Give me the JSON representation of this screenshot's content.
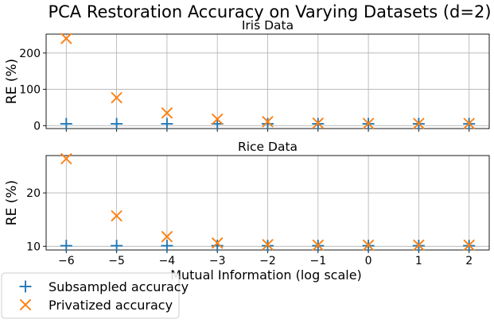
{
  "suptitle": "PCA Restoration Accuracy on Varying Datasets (d=2)",
  "legend": {
    "location": "lower-left",
    "entries": [
      {
        "label": "Subsampled accuracy",
        "marker": "plus",
        "color": "#1f77b4"
      },
      {
        "label": "Privatized accuracy",
        "marker": "x",
        "color": "#ff7f0e"
      }
    ]
  },
  "chart_data": [
    {
      "type": "scatter",
      "title": "Iris Data",
      "xlabel": "",
      "ylabel": "RE (%)",
      "x": [
        -6,
        -5,
        -4,
        -3,
        -2,
        -1,
        0,
        1,
        2
      ],
      "xlim": [
        -6.4,
        2.4
      ],
      "ylim": [
        -8,
        252
      ],
      "yticks": [
        0,
        100,
        200
      ],
      "grid": true,
      "show_xtick_labels": false,
      "series": [
        {
          "name": "Subsampled accuracy",
          "marker": "plus",
          "color": "#1f77b4",
          "values": [
            5,
            5,
            5,
            5,
            5,
            5,
            5,
            5,
            5
          ]
        },
        {
          "name": "Privatized accuracy",
          "marker": "x",
          "color": "#ff7f0e",
          "values": [
            240,
            77,
            35,
            18,
            11,
            7,
            6,
            6,
            6
          ]
        }
      ]
    },
    {
      "type": "scatter",
      "title": "Rice Data",
      "xlabel": "Mutual Information (log scale)",
      "ylabel": "RE (%)",
      "x": [
        -6,
        -5,
        -4,
        -3,
        -2,
        -1,
        0,
        1,
        2
      ],
      "xlim": [
        -6.4,
        2.4
      ],
      "ylim": [
        9.3,
        27
      ],
      "yticks": [
        10,
        20
      ],
      "xticks": [
        "−6",
        "−5",
        "−4",
        "−3",
        "−2",
        "−1",
        "0",
        "1",
        "2"
      ],
      "grid": true,
      "show_xtick_labels": true,
      "series": [
        {
          "name": "Subsampled accuracy",
          "marker": "plus",
          "color": "#1f77b4",
          "values": [
            10.1,
            10.1,
            10.1,
            10.1,
            10.1,
            10.1,
            10.1,
            10.1,
            10.1
          ]
        },
        {
          "name": "Privatized accuracy",
          "marker": "x",
          "color": "#ff7f0e",
          "values": [
            26.4,
            15.7,
            11.8,
            10.6,
            10.3,
            10.2,
            10.2,
            10.2,
            10.2
          ]
        }
      ]
    }
  ]
}
